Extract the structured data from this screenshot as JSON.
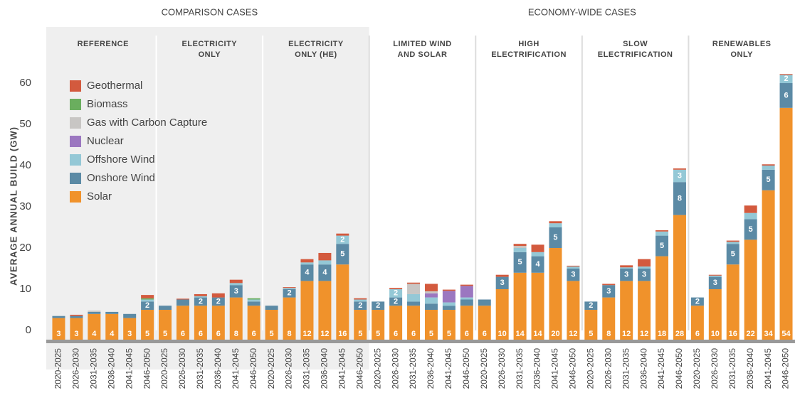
{
  "chart_data": {
    "type": "stacked-bar",
    "ylabel": "AVERAGE ANNUAL BUILD (GW)",
    "sections": [
      {
        "name": "COMPARISON CASES",
        "groups": [
          0,
          1,
          2
        ]
      },
      {
        "name": "ECONOMY-WIDE CASES",
        "groups": [
          3,
          4,
          5,
          6
        ]
      }
    ],
    "groups": [
      [
        "REFERENCE"
      ],
      [
        "ELECTRICITY",
        "ONLY"
      ],
      [
        "ELECTRICITY",
        "ONLY (HE)"
      ],
      [
        "LIMITED WIND",
        "AND SOLAR"
      ],
      [
        "HIGH",
        "ELECTRIFICATION"
      ],
      [
        "SLOW",
        "ELECTRIFICATION"
      ],
      [
        "RENEWABLES",
        "ONLY"
      ]
    ],
    "categories": [
      "2020-2025",
      "2026-2030",
      "2031-2035",
      "2036-2040",
      "2041-2045",
      "2046-2050",
      "2020-2025",
      "2026-2030",
      "2031-2035",
      "2036-2040",
      "2041-2045",
      "2046-2050",
      "2020-2025",
      "2026-2030",
      "2031-2035",
      "2036-2040",
      "2041-2045",
      "2046-2050",
      "2020-2025",
      "2026-2030",
      "2031-2035",
      "2036-2040",
      "2041-2045",
      "2046-2050",
      "2020-2025",
      "2026-2030",
      "2031-2035",
      "2036-2040",
      "2041-2045",
      "2046-2050",
      "2020-2025",
      "2026-2030",
      "2031-2035",
      "2036-2040",
      "2041-2045",
      "2046-2050",
      "2020-2025",
      "2026-2030",
      "2031-2035",
      "2036-2040",
      "2041-2045",
      "2046-2050"
    ],
    "series": [
      {
        "name": "Solar",
        "color": "#f0922b",
        "values": [
          3,
          3,
          4,
          4,
          3,
          5,
          5,
          6,
          6,
          6,
          8,
          6,
          5,
          8,
          12,
          12,
          16,
          5,
          5,
          6,
          6,
          5,
          5,
          6,
          6,
          10,
          14,
          14,
          20,
          12,
          5,
          8,
          12,
          12,
          18,
          28,
          6,
          10,
          16,
          22,
          34,
          54
        ]
      },
      {
        "name": "Onshore Wind",
        "color": "#5b8aa5",
        "values": [
          0.5,
          0.5,
          0.5,
          0.5,
          1,
          2,
          1,
          1.5,
          2,
          2,
          3,
          1,
          1,
          2,
          4,
          4,
          5,
          2,
          2,
          2,
          1,
          1.5,
          1,
          1.5,
          1.5,
          3,
          5,
          4,
          5,
          3,
          2,
          3,
          3,
          3,
          5,
          8,
          2,
          3,
          5,
          5,
          5,
          6
        ]
      },
      {
        "name": "Offshore Wind",
        "color": "#94c8d6",
        "values": [
          0,
          0,
          0,
          0,
          0,
          0.5,
          0,
          0,
          0.3,
          0,
          0.5,
          0.5,
          0,
          0.3,
          0.5,
          1,
          2,
          0.5,
          0,
          2,
          1.8,
          1.5,
          0.8,
          0.5,
          0,
          0,
          1,
          1,
          1,
          0.5,
          0,
          0,
          0.3,
          0.5,
          1,
          3,
          0,
          0.3,
          0.5,
          1.5,
          1,
          2
        ]
      },
      {
        "name": "Nuclear",
        "color": "#9b77c0",
        "values": [
          0,
          0,
          0,
          0,
          0,
          0,
          0,
          0,
          0,
          0,
          0,
          0,
          0,
          0,
          0,
          0,
          0,
          0,
          0,
          0,
          0,
          1,
          2.8,
          2.8,
          0,
          0,
          0,
          0,
          0,
          0,
          0,
          0,
          0,
          0,
          0,
          0,
          0,
          0,
          0,
          0,
          0,
          0
        ]
      },
      {
        "name": "Gas with Carbon Capture",
        "color": "#c8c6c4",
        "values": [
          0,
          0,
          0.3,
          0,
          0,
          0,
          0,
          0,
          0,
          0,
          0,
          0,
          0,
          0,
          0,
          0,
          0,
          0,
          0,
          0,
          2.5,
          0.5,
          0,
          0,
          0,
          0,
          0.5,
          0,
          0,
          0,
          0,
          0,
          0,
          0,
          0,
          0,
          0,
          0,
          0,
          0,
          0,
          0
        ]
      },
      {
        "name": "Biomass",
        "color": "#6aae5e",
        "values": [
          0,
          0,
          0,
          0,
          0,
          0.3,
          0,
          0,
          0,
          0,
          0,
          0.3,
          0,
          0,
          0,
          0,
          0,
          0,
          0,
          0,
          0,
          0,
          0,
          0,
          0,
          0,
          0,
          0,
          0,
          0,
          0,
          0,
          0,
          0,
          0,
          0,
          0,
          0,
          0,
          0,
          0,
          0
        ]
      },
      {
        "name": "Geothermal",
        "color": "#d35a3e",
        "values": [
          0,
          0.3,
          0,
          0,
          0,
          0.8,
          0,
          0.2,
          0.5,
          1,
          0.8,
          0,
          0,
          0.2,
          0.8,
          1.8,
          0.5,
          0.3,
          0,
          0.3,
          0.3,
          1.8,
          0.3,
          0.3,
          0,
          0.5,
          0.5,
          1.8,
          0.5,
          0.2,
          0,
          0.3,
          0.5,
          1.8,
          0.3,
          0.3,
          0,
          0.2,
          0.3,
          1.8,
          0.3,
          0.2
        ]
      }
    ],
    "ylim": [
      0,
      70
    ],
    "yticks": [
      0,
      10,
      20,
      30,
      40,
      50,
      60
    ]
  }
}
